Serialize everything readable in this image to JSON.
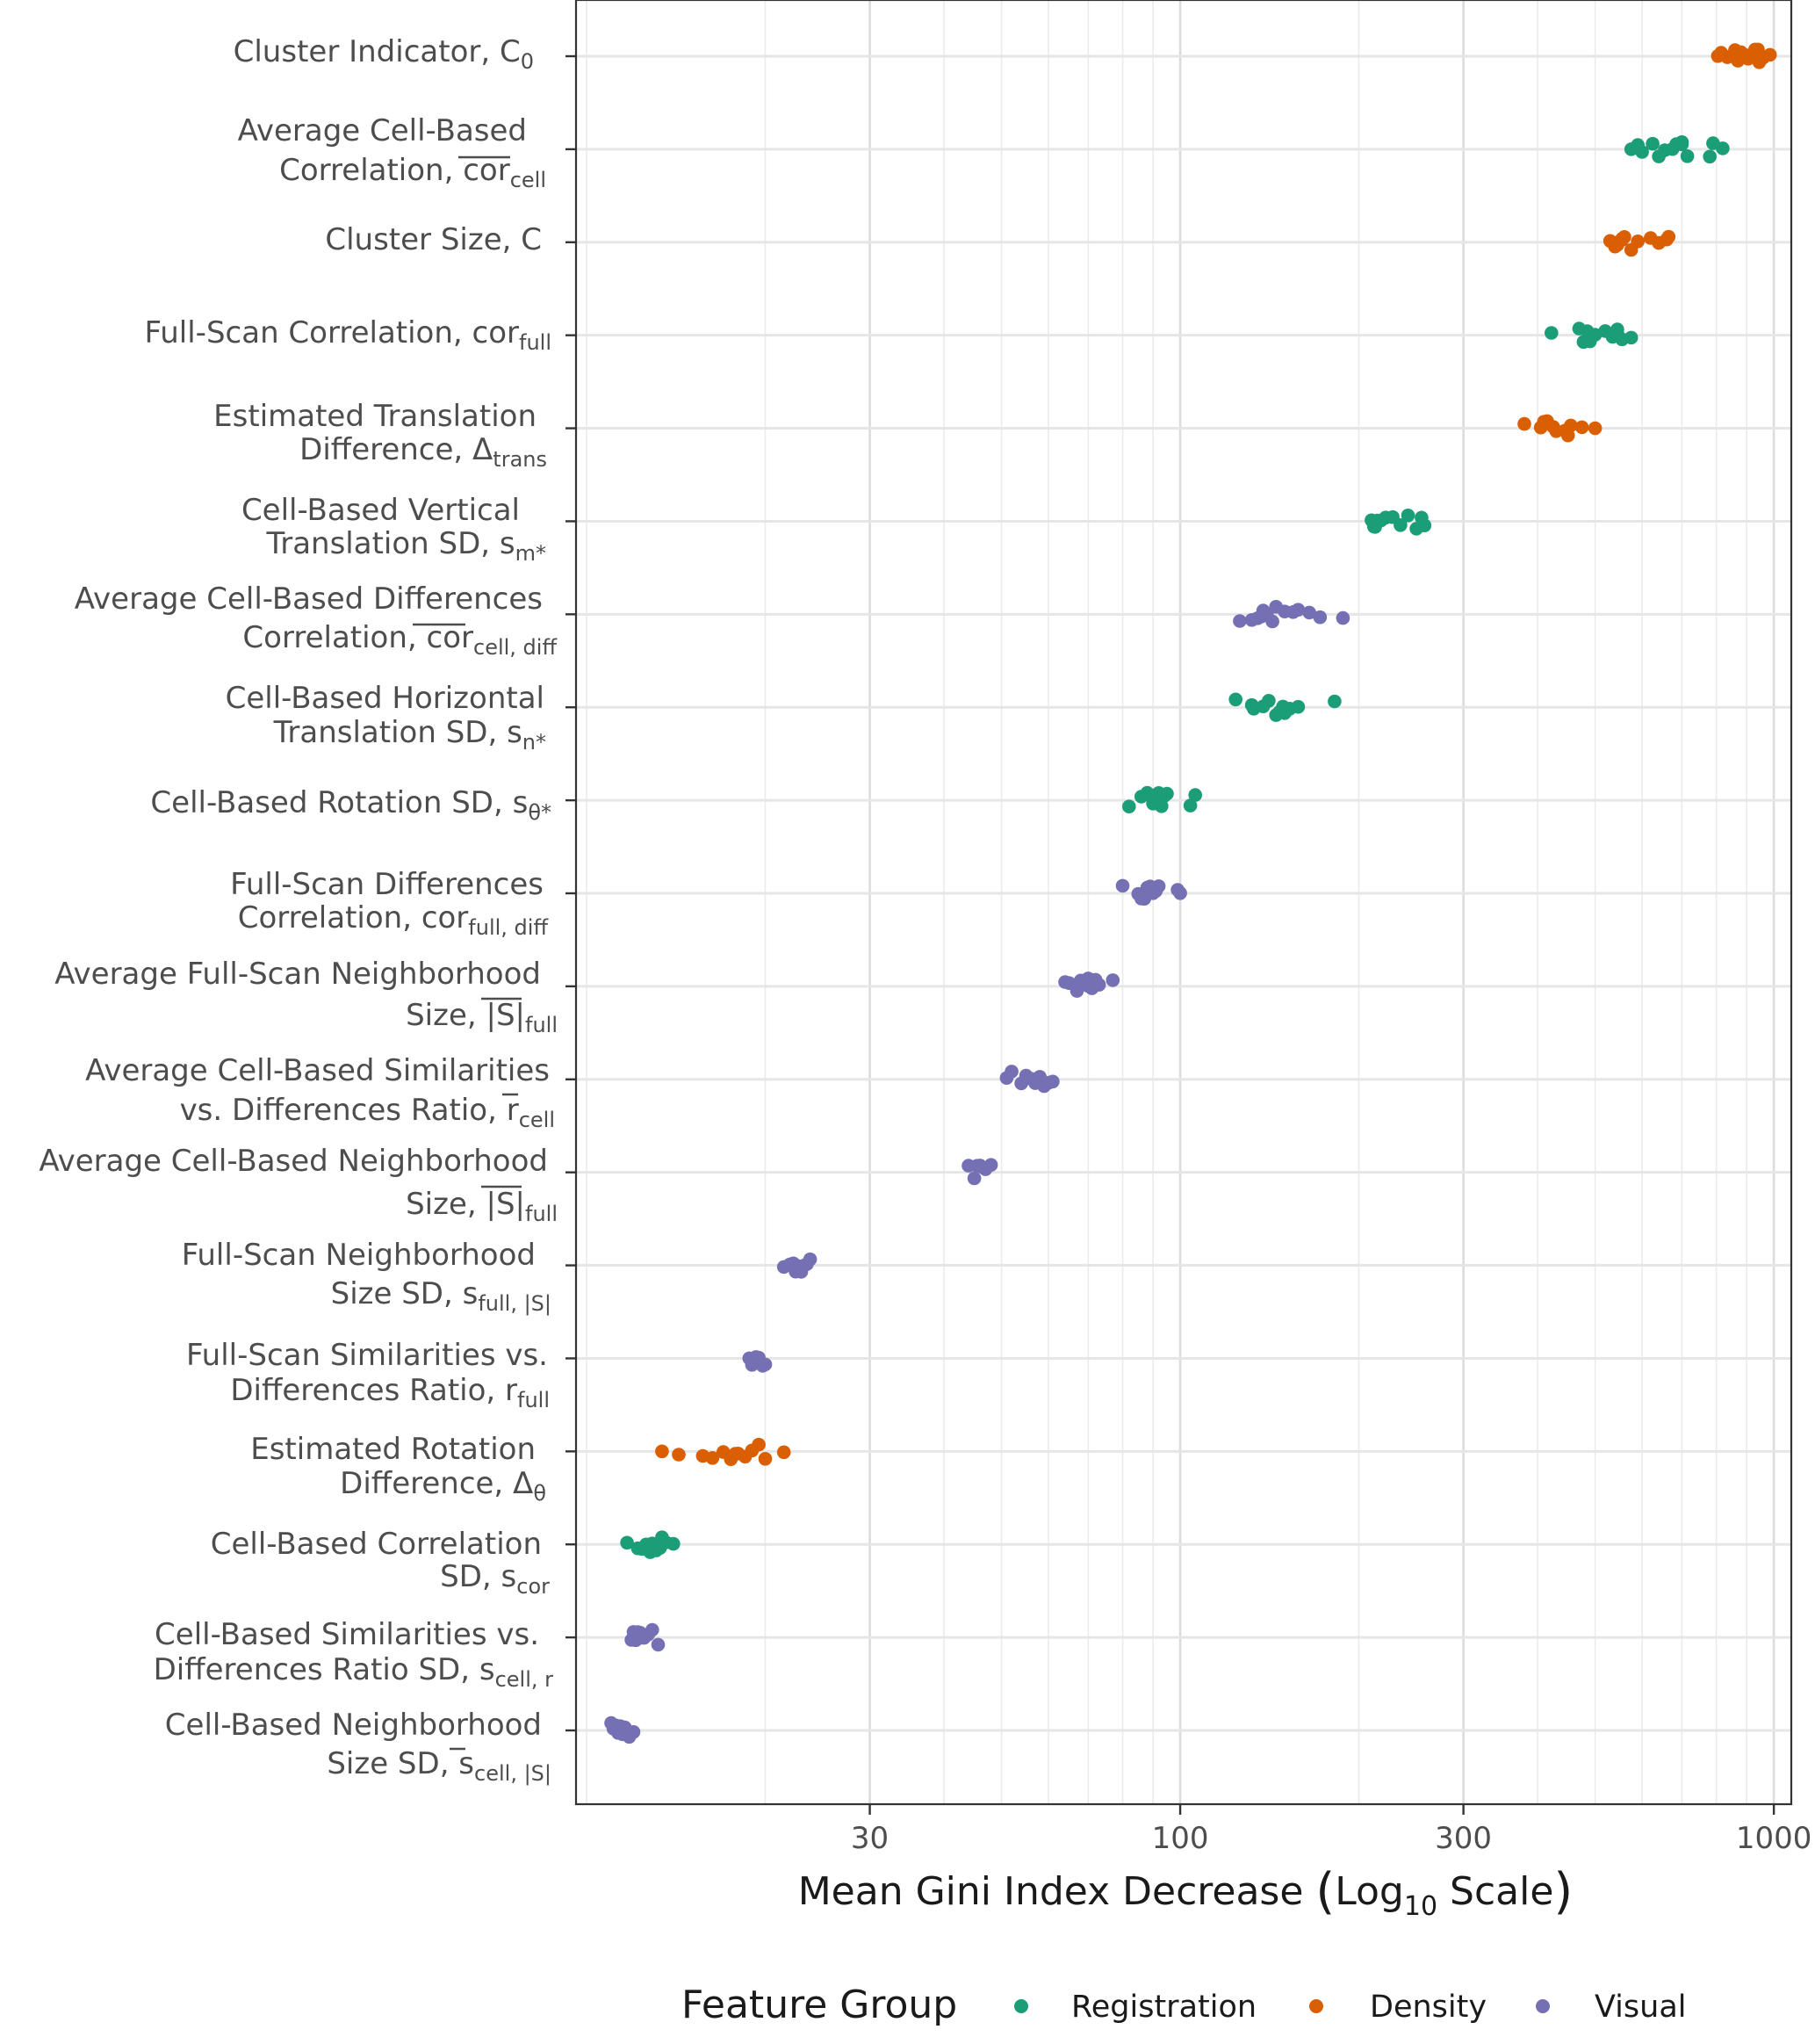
{
  "chart_data": {
    "type": "scatter",
    "x_scale": "log10",
    "xlim": [
      9.6,
      1070
    ],
    "x_ticks": [
      30,
      100,
      300,
      1000
    ],
    "x_tick_labels": [
      "30",
      "100",
      "300",
      "1000"
    ],
    "xlabel": "Mean Gini Index Decrease (Log10 Scale)",
    "legend": {
      "title": "Feature Group",
      "position": "bottom",
      "entries": [
        "Registration",
        "Density",
        "Visual"
      ]
    },
    "colors": {
      "Registration": "#1b9e77",
      "Density": "#d95f02",
      "Visual": "#7570b3"
    },
    "grid": true,
    "features": [
      {
        "label": "Cluster Indicator, C0",
        "group": "Density",
        "values": [
          805,
          835,
          860,
          880,
          900,
          915,
          930,
          945,
          960,
          985,
          815,
          870,
          905,
          940
        ]
      },
      {
        "label": "Average Cell-Based Correlation, cor_cell (bar)",
        "group": "Registration",
        "values": [
          575,
          590,
          600,
          625,
          655,
          675,
          685,
          700,
          715,
          780,
          790,
          820,
          640,
          700
        ]
      },
      {
        "label": "Cluster Size, C",
        "group": "Density",
        "values": [
          530,
          540,
          545,
          555,
          560,
          575,
          590,
          620,
          640,
          660,
          665,
          540,
          555
        ]
      },
      {
        "label": "Full-Scan Correlation, cor_full",
        "group": "Registration",
        "values": [
          422,
          470,
          478,
          485,
          490,
          500,
          520,
          535,
          545,
          555,
          575,
          545
        ]
      },
      {
        "label": "Estimated Translation Difference, Δtrans",
        "group": "Density",
        "values": [
          380,
          405,
          410,
          415,
          425,
          430,
          445,
          450,
          455,
          475,
          500
        ]
      },
      {
        "label": "Cell-Based Vertical Translation SD, s_m*",
        "group": "Registration",
        "values": [
          210,
          212,
          215,
          218,
          222,
          228,
          235,
          242,
          255,
          258,
          213,
          250
        ]
      },
      {
        "label": "Average Cell-Based Differences Correlation, cor_cell,diff (bar)",
        "group": "Visual",
        "values": [
          126,
          132,
          135,
          137,
          140,
          145,
          150,
          155,
          158,
          165,
          172,
          188,
          138,
          143
        ]
      },
      {
        "label": "Cell-Based Horizontal Translation SD, s_n*",
        "group": "Registration",
        "values": [
          124,
          132,
          133,
          138,
          141,
          145,
          149,
          150,
          153,
          158,
          182,
          147
        ]
      },
      {
        "label": "Cell-Based Rotation SD, s_θ*",
        "group": "Registration",
        "values": [
          82,
          86,
          88,
          89,
          90,
          91,
          92,
          93,
          94,
          104,
          106,
          92,
          95
        ]
      },
      {
        "label": "Full-Scan Differences Correlation, cor_full,diff",
        "group": "Visual",
        "values": [
          80,
          85,
          86,
          87,
          88,
          90,
          92,
          99,
          100,
          89,
          91
        ]
      },
      {
        "label": "Average Full-Scan Neighborhood Size, |S|_full (bar)",
        "group": "Visual",
        "values": [
          64,
          65,
          67,
          68,
          69,
          70,
          71,
          72,
          73,
          77,
          70
        ]
      },
      {
        "label": "Average Cell-Based Similarities vs. Differences Ratio, r_cell (bar)",
        "group": "Visual",
        "values": [
          51,
          52,
          54,
          56,
          57,
          58,
          59,
          60,
          61,
          55,
          58
        ]
      },
      {
        "label": "Average Cell-Based Neighborhood Size, |S|_full (bar)",
        "group": "Visual",
        "values": [
          44,
          45,
          45.5,
          46,
          46.5,
          47,
          48
        ]
      },
      {
        "label": "Full-Scan Neighborhood Size SD, s_full,|S|",
        "group": "Visual",
        "values": [
          21.5,
          22,
          22.3,
          22.7,
          23,
          23.2,
          23.5,
          23.8,
          22.5,
          23
        ]
      },
      {
        "label": "Full-Scan Similarities vs. Differences Ratio, r_full",
        "group": "Visual",
        "values": [
          18.8,
          19.0,
          19.2,
          19.5,
          19.8,
          20.0,
          19.3
        ]
      },
      {
        "label": "Estimated Rotation Difference, Δθ",
        "group": "Density",
        "values": [
          13.4,
          14.3,
          15.7,
          16.3,
          17.0,
          17.5,
          18.0,
          18.5,
          19.0,
          19.5,
          20.0,
          21.5,
          17.8
        ]
      },
      {
        "label": "Cell-Based Correlation SD, s_cor",
        "group": "Registration",
        "values": [
          11.7,
          12.2,
          12.4,
          12.6,
          12.9,
          13.1,
          13.3,
          13.4,
          13.6,
          14.0,
          12.8
        ]
      },
      {
        "label": "Cell-Based Similarities vs. Differences Ratio SD, s_cell,r",
        "group": "Visual",
        "values": [
          11.9,
          12.0,
          12.1,
          12.2,
          12.3,
          12.5,
          12.7,
          12.9,
          13.2,
          12.4
        ]
      },
      {
        "label": "Cell-Based Neighborhood Size SD, s_cell,|S| (bar)",
        "group": "Visual",
        "values": [
          11.0,
          11.1,
          11.2,
          11.3,
          11.4,
          11.5,
          11.6,
          11.8,
          12.0,
          11.35
        ]
      }
    ]
  }
}
